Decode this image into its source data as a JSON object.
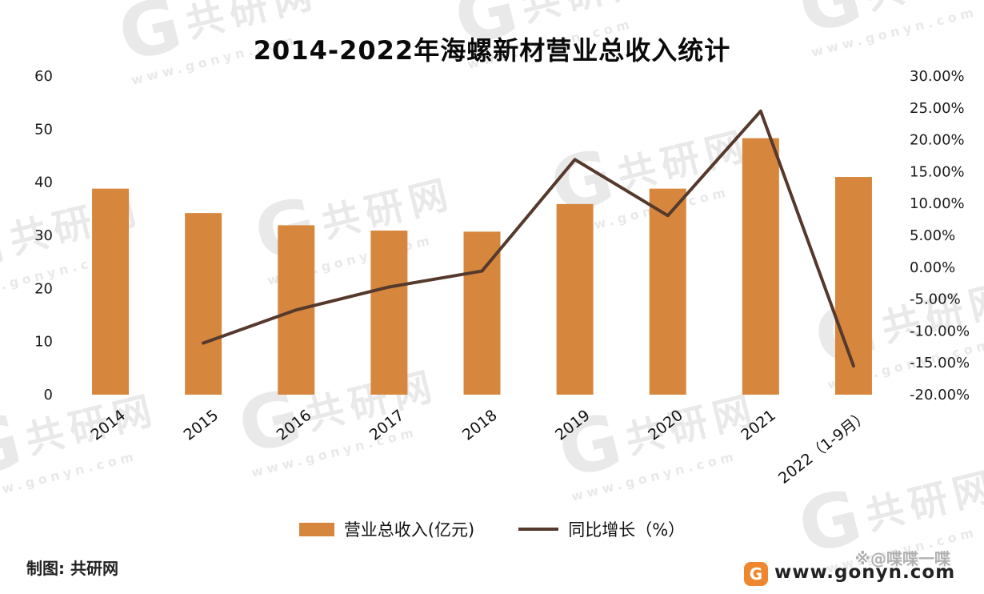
{
  "title": "2014-2022年海螺新材营业总收入统计",
  "watermark": {
    "letter": "G",
    "brand": "共研网",
    "url": "www.gonyn.com"
  },
  "chart_data": {
    "type": "bar",
    "subtype": "combo-bar-line-dual-axis",
    "title": "2014-2022年海螺新材营业总收入统计",
    "categories": [
      "2014",
      "2015",
      "2016",
      "2017",
      "2018",
      "2019",
      "2020",
      "2021",
      "2022（1-9月）"
    ],
    "series": [
      {
        "name": "营业总收入(亿元)",
        "type": "bar",
        "axis": "left",
        "color": "#d7873d",
        "values": [
          38.8,
          34.2,
          31.9,
          30.9,
          30.7,
          35.9,
          38.8,
          48.3,
          41.0
        ]
      },
      {
        "name": "同比增长（%）",
        "type": "line",
        "axis": "right",
        "color": "#55392c",
        "values": [
          null,
          -11.9,
          -6.7,
          -3.1,
          -0.6,
          16.9,
          8.1,
          24.5,
          -15.5
        ]
      }
    ],
    "left_axis": {
      "min": 0,
      "max": 60,
      "ticks": [
        60,
        50,
        40,
        30,
        20,
        10,
        0
      ]
    },
    "right_axis": {
      "min": -20,
      "max": 30,
      "ticks": [
        "30.00%",
        "25.00%",
        "20.00%",
        "15.00%",
        "10.00%",
        "5.00%",
        "0.00%",
        "-5.00%",
        "-10.00%",
        "-15.00%",
        "-20.00%"
      ]
    },
    "grid": false,
    "legend_position": "bottom"
  },
  "legend": {
    "bar_label": "营业总收入(亿元)",
    "line_label": "同比增长（%）"
  },
  "footer": {
    "credit": "制图: 共研网",
    "logo_letter": "G",
    "logo_color": "#ee8730",
    "site": "www.gonyn.com",
    "handle": "※@喋喋一喋"
  }
}
